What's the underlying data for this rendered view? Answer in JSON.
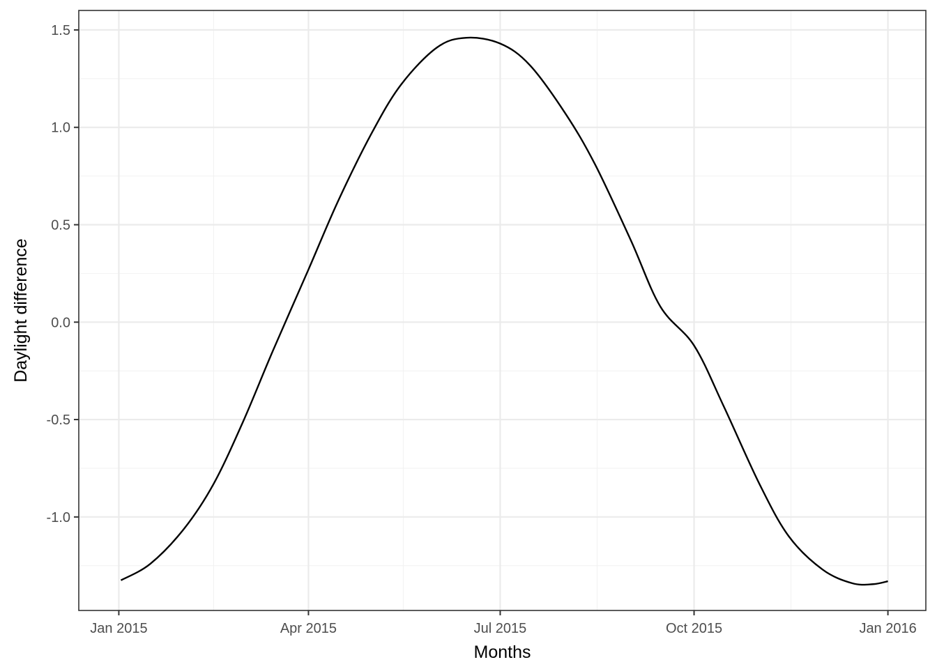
{
  "chart_data": {
    "type": "line",
    "title": "",
    "xlabel": "Months",
    "ylabel": "Daylight difference",
    "x_axis": {
      "kind": "date",
      "range": [
        "2014-12-13",
        "2016-01-19"
      ],
      "ticks": [
        {
          "date": "2015-01-01",
          "label": "Jan 2015"
        },
        {
          "date": "2015-04-01",
          "label": "Apr 2015"
        },
        {
          "date": "2015-07-01",
          "label": "Jul 2015"
        },
        {
          "date": "2015-10-01",
          "label": "Oct 2015"
        },
        {
          "date": "2016-01-01",
          "label": "Jan 2016"
        }
      ],
      "minor_ticks": [
        "2015-02-15",
        "2015-05-16",
        "2015-08-16",
        "2015-11-16"
      ]
    },
    "y_axis": {
      "range": [
        -1.48,
        1.6
      ],
      "ticks": [
        {
          "value": 1.5,
          "label": "1.5"
        },
        {
          "value": 1.0,
          "label": "1.0"
        },
        {
          "value": 0.5,
          "label": "0.5"
        },
        {
          "value": 0.0,
          "label": "0.0"
        },
        {
          "value": -0.5,
          "label": "-0.5"
        },
        {
          "value": -1.0,
          "label": "-1.0"
        }
      ],
      "minor_ticks": [
        1.25,
        0.75,
        0.25,
        -0.25,
        -0.75,
        -1.25
      ]
    },
    "grid": true,
    "legend": "none",
    "series": [
      {
        "color": "#000000",
        "points": [
          {
            "x": "2015-01-02",
            "y": -1.325
          },
          {
            "x": "2015-01-16",
            "y": -1.24
          },
          {
            "x": "2015-02-01",
            "y": -1.06
          },
          {
            "x": "2015-02-15",
            "y": -0.83
          },
          {
            "x": "2015-03-01",
            "y": -0.51
          },
          {
            "x": "2015-03-15",
            "y": -0.15
          },
          {
            "x": "2015-04-01",
            "y": 0.27
          },
          {
            "x": "2015-04-15",
            "y": 0.62
          },
          {
            "x": "2015-05-01",
            "y": 0.97
          },
          {
            "x": "2015-05-15",
            "y": 1.22
          },
          {
            "x": "2015-06-01",
            "y": 1.41
          },
          {
            "x": "2015-06-15",
            "y": 1.46
          },
          {
            "x": "2015-07-01",
            "y": 1.43
          },
          {
            "x": "2015-07-15",
            "y": 1.32
          },
          {
            "x": "2015-08-01",
            "y": 1.07
          },
          {
            "x": "2015-08-15",
            "y": 0.81
          },
          {
            "x": "2015-09-01",
            "y": 0.42
          },
          {
            "x": "2015-09-15",
            "y": 0.08
          },
          {
            "x": "2015-10-01",
            "y": -0.12
          },
          {
            "x": "2015-10-15",
            "y": -0.43
          },
          {
            "x": "2015-11-01",
            "y": -0.83
          },
          {
            "x": "2015-11-15",
            "y": -1.1
          },
          {
            "x": "2015-12-01",
            "y": -1.27
          },
          {
            "x": "2015-12-15",
            "y": -1.34
          },
          {
            "x": "2015-12-25",
            "y": -1.345
          },
          {
            "x": "2016-01-01",
            "y": -1.33
          }
        ]
      }
    ]
  }
}
